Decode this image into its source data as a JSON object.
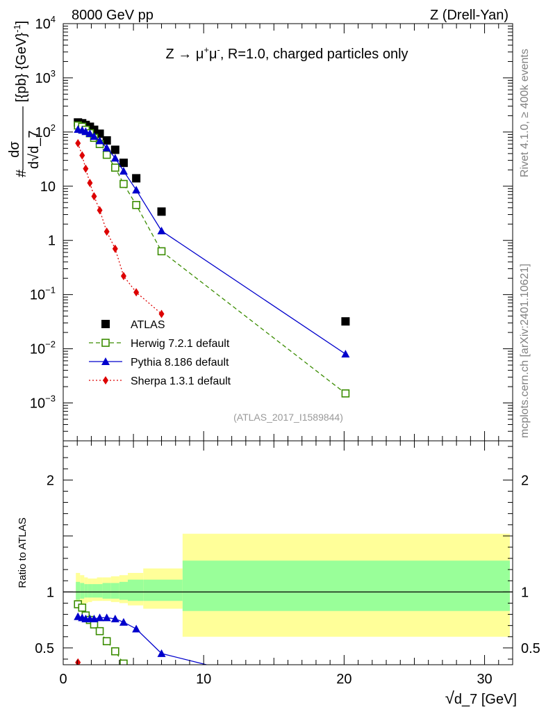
{
  "header": {
    "left": "8000 GeV pp",
    "right": "Z (Drell-Yan)",
    "side_rivet": "Rivet 4.1.0, ≥ 400k events",
    "side_mcplots": "mcplots.cern.ch [arXiv:2401.10621]"
  },
  "chart_data": [
    {
      "type": "line",
      "yscale": "log",
      "title_parts": {
        "pre": "Z → μ",
        "sup1": "+",
        "mid": "μ",
        "sup2": "-",
        "post": ", R=1.0, charged particles only"
      },
      "ylabel_parts": {
        "hash": "#",
        "num": "dσ",
        "den_d": "d",
        "den_root": "√",
        "den_var": "d_7",
        "rest": "[{pb} {GeV}",
        "rest_sup": "-1",
        "close": "]"
      },
      "watermark": "(ATLAS_2017_I1589844)",
      "xlim": [
        0,
        32
      ],
      "ylim": [
        0.0002,
        10000
      ],
      "ytick_labels": [
        {
          "value": 0.001,
          "base": "10",
          "exp": "−3"
        },
        {
          "value": 0.01,
          "base": "10",
          "exp": "−2"
        },
        {
          "value": 0.1,
          "base": "10",
          "exp": "−1"
        },
        {
          "value": 1,
          "base": "1",
          "exp": ""
        },
        {
          "value": 10,
          "base": "10",
          "exp": ""
        },
        {
          "value": 100,
          "base": "10",
          "exp": "2"
        },
        {
          "value": 1000,
          "base": "10",
          "exp": "3"
        },
        {
          "value": 10000,
          "base": "10",
          "exp": "4"
        }
      ],
      "series": [
        {
          "name": "ATLAS",
          "legend": "ATLAS",
          "color": "#000000",
          "marker": "square-filled",
          "line": "none",
          "x": [
            1.05,
            1.35,
            1.6,
            1.9,
            2.2,
            2.6,
            3.1,
            3.7,
            4.3,
            5.2,
            7.0,
            20.1
          ],
          "y": [
            150,
            145,
            135,
            125,
            110,
            93,
            70,
            47,
            27,
            14,
            3.4,
            0.032
          ]
        },
        {
          "name": "Herwig 7.2.1 default",
          "legend": "Herwig 7.2.1 default",
          "color": "#3a8c00",
          "marker": "square-open",
          "line": "dashed",
          "x": [
            1.05,
            1.35,
            1.6,
            1.9,
            2.2,
            2.6,
            3.1,
            3.7,
            4.3,
            5.2,
            7.0,
            20.1
          ],
          "y": [
            132,
            125,
            110,
            95,
            78,
            60,
            38,
            22,
            11,
            4.5,
            0.63,
            0.0015
          ]
        },
        {
          "name": "Pythia 8.186 default",
          "legend": "Pythia 8.186 default",
          "color": "#0000cc",
          "marker": "triangle",
          "line": "solid",
          "x": [
            1.05,
            1.35,
            1.6,
            1.9,
            2.2,
            2.6,
            3.1,
            3.7,
            4.3,
            5.2,
            7.0,
            20.1
          ],
          "y": [
            112,
            108,
            102,
            94,
            83,
            69,
            51,
            33,
            19,
            8.5,
            1.5,
            0.008
          ]
        },
        {
          "name": "Sherpa 1.3.1 default",
          "legend": "Sherpa 1.3.1 default",
          "color": "#dd0000",
          "marker": "diamond",
          "line": "dotted",
          "x": [
            1.05,
            1.35,
            1.6,
            1.9,
            2.2,
            2.6,
            3.1,
            3.7,
            4.3,
            5.2,
            7.0
          ],
          "y": [
            62,
            37,
            21,
            11.5,
            6.5,
            3.6,
            1.45,
            0.7,
            0.22,
            0.11,
            0.044
          ]
        }
      ]
    },
    {
      "type": "line",
      "ylabel": "Ratio to ATLAS",
      "xlabel_parts": {
        "root": "√",
        "var": "d_7",
        "unit": " [GeV]"
      },
      "xlim": [
        0,
        32
      ],
      "ylim": [
        0.35,
        2.35
      ],
      "xticks": [
        0,
        10,
        20,
        30
      ],
      "yticks": [
        0.5,
        1,
        2
      ],
      "ytick_labels": [
        "0.5",
        "1",
        "2"
      ],
      "bands": {
        "edges": [
          0.9,
          1.2,
          1.5,
          1.75,
          2.05,
          2.4,
          2.8,
          3.4,
          4.0,
          4.6,
          5.7,
          8.5,
          31.8
        ],
        "yellow_hi": [
          1.17,
          1.15,
          1.13,
          1.12,
          1.12,
          1.13,
          1.13,
          1.14,
          1.15,
          1.17,
          1.21,
          1.52
        ],
        "yellow_lo": [
          0.86,
          0.88,
          0.9,
          0.91,
          0.92,
          0.92,
          0.92,
          0.91,
          0.9,
          0.88,
          0.85,
          0.6
        ],
        "green_hi": [
          1.09,
          1.08,
          1.07,
          1.07,
          1.07,
          1.07,
          1.08,
          1.08,
          1.09,
          1.11,
          1.11,
          1.28
        ],
        "green_lo": [
          0.93,
          0.94,
          0.95,
          0.95,
          0.95,
          0.95,
          0.94,
          0.94,
          0.93,
          0.92,
          0.92,
          0.83
        ],
        "yellow_color": "#ffff99",
        "green_color": "#99ff99"
      },
      "series": [
        {
          "name": "Herwig 7.2.1 default",
          "color": "#3a8c00",
          "marker": "square-open",
          "line": "dashed",
          "x": [
            1.05,
            1.35,
            1.6,
            1.9,
            2.2,
            2.6,
            3.1,
            3.7,
            4.3
          ],
          "y": [
            0.89,
            0.86,
            0.79,
            0.75,
            0.71,
            0.65,
            0.56,
            0.47,
            0.36
          ]
        },
        {
          "name": "Pythia 8.186 default",
          "color": "#0000cc",
          "marker": "triangle",
          "line": "solid",
          "x": [
            1.05,
            1.35,
            1.6,
            1.9,
            2.2,
            2.6,
            3.1,
            3.7,
            4.3,
            5.2,
            7.0,
            10.2
          ],
          "y": [
            0.78,
            0.77,
            0.76,
            0.76,
            0.76,
            0.77,
            0.77,
            0.76,
            0.73,
            0.67,
            0.45,
            0.35
          ]
        },
        {
          "name": "Sherpa 1.3.1 default",
          "color": "#dd0000",
          "marker": "diamond",
          "line": "dotted",
          "x": [
            1.05
          ],
          "y": [
            0.37
          ]
        }
      ]
    }
  ]
}
